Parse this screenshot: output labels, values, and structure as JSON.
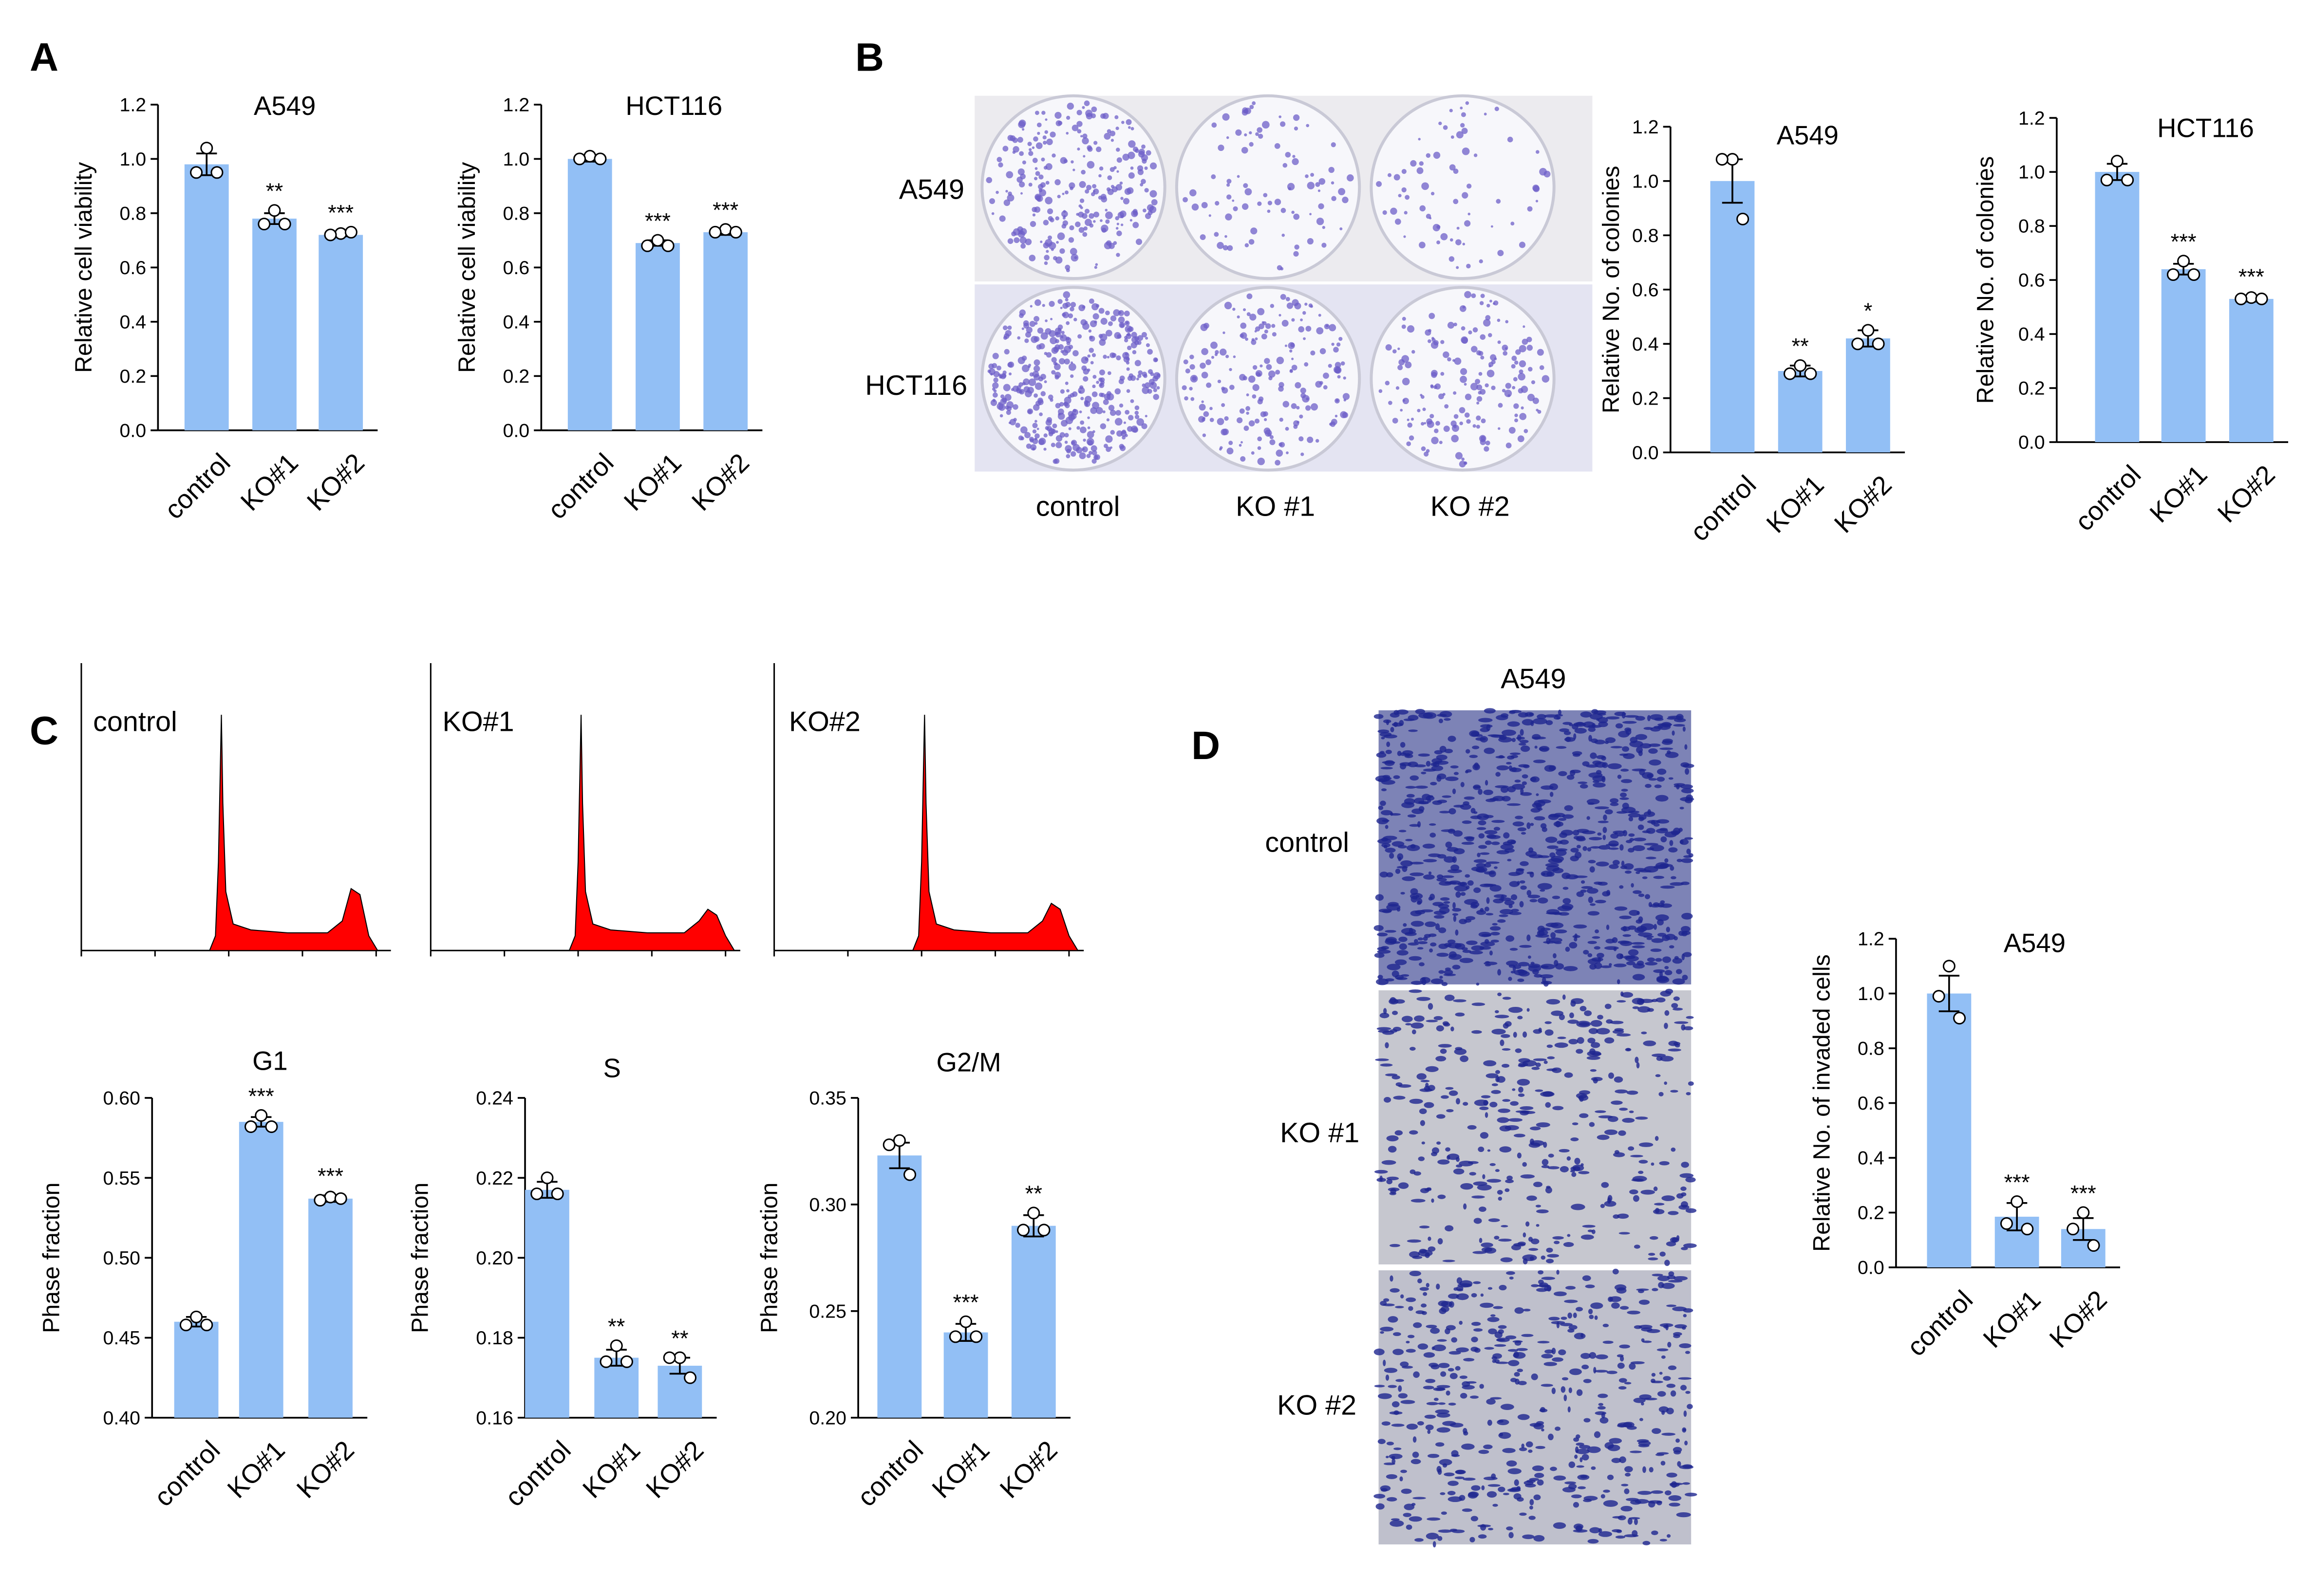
{
  "panel_labels": [
    "A",
    "B",
    "C",
    "D"
  ],
  "colony_images": {
    "rows": [
      "A549",
      "HCT116"
    ],
    "columns": [
      "control",
      "KO #1",
      "KO #2"
    ]
  },
  "cell_cycle_histograms": {
    "labels": [
      "control",
      "KO#1",
      "KO#2"
    ]
  },
  "invasion_images": {
    "title": "A549",
    "rows": [
      "control",
      "KO #1",
      "KO #2"
    ]
  },
  "chart_data": [
    {
      "type": "bar",
      "title": "A549",
      "y_label": "Relative cell viability",
      "categories": [
        "control",
        "KO#1",
        "KO#2"
      ],
      "values": [
        0.98,
        0.78,
        0.72
      ],
      "errors": [
        0.04,
        0.02,
        0.005
      ],
      "points": [
        [
          1.04,
          0.95,
          0.95
        ],
        [
          0.81,
          0.76,
          0.76
        ],
        [
          0.725,
          0.72,
          0.73
        ]
      ],
      "annotations": [
        null,
        "**",
        "***"
      ],
      "color": "#92bff5",
      "ylim": [
        0,
        1.2
      ],
      "yticks": [
        {
          "value": 0,
          "label": "0.0"
        },
        0.2,
        0.4,
        0.6,
        0.8,
        {
          "value": 1,
          "label": "1.0"
        },
        1.2
      ]
    },
    {
      "type": "bar",
      "title": "HCT116",
      "y_label": "Relative cell viability",
      "categories": [
        "control",
        "KO#1",
        "KO#2"
      ],
      "values": [
        1.0,
        0.69,
        0.73
      ],
      "errors": [
        0.01,
        0.01,
        0.01
      ],
      "points": [
        [
          1.01,
          1.0,
          1.0
        ],
        [
          0.7,
          0.68,
          0.68
        ],
        [
          0.74,
          0.73,
          0.73
        ]
      ],
      "annotations": [
        null,
        "***",
        "***"
      ],
      "color": "#92bff5",
      "ylim": [
        0,
        1.2
      ],
      "yticks": [
        {
          "value": 0,
          "label": "0.0"
        },
        0.2,
        0.4,
        0.6,
        0.8,
        {
          "value": 1,
          "label": "1.0"
        },
        1.2
      ]
    },
    {
      "type": "bar",
      "title": "A549",
      "y_label": "Relative No. of colonies",
      "categories": [
        "control",
        "KO#1",
        "KO#2"
      ],
      "values": [
        1.0,
        0.3,
        0.42
      ],
      "errors": [
        0.08,
        0.02,
        0.03
      ],
      "points": [
        [
          1.08,
          1.08,
          0.86
        ],
        [
          0.32,
          0.29,
          0.29
        ],
        [
          0.45,
          0.4,
          0.4
        ]
      ],
      "annotations": [
        null,
        "**",
        "*"
      ],
      "color": "#92bff5",
      "ylim": [
        0,
        1.2
      ],
      "yticks": [
        {
          "value": 0,
          "label": "0.0"
        },
        0.2,
        0.4,
        0.6,
        0.8,
        {
          "value": 1,
          "label": "1.0"
        },
        1.2
      ]
    },
    {
      "type": "bar",
      "title": "HCT116",
      "y_label": "Relative No. of colonies",
      "categories": [
        "control",
        "KO#1",
        "KO#2"
      ],
      "values": [
        1.0,
        0.64,
        0.53
      ],
      "errors": [
        0.03,
        0.02,
        0.01
      ],
      "points": [
        [
          1.04,
          0.97,
          0.97
        ],
        [
          0.67,
          0.62,
          0.62
        ],
        [
          0.535,
          0.53,
          0.53
        ]
      ],
      "annotations": [
        null,
        "***",
        "***"
      ],
      "color": "#92bff5",
      "ylim": [
        0,
        1.2
      ],
      "yticks": [
        {
          "value": 0,
          "label": "0.0"
        },
        0.2,
        0.4,
        0.6,
        0.8,
        {
          "value": 1,
          "label": "1.0"
        },
        1.2
      ]
    },
    {
      "type": "bar",
      "title": "G1",
      "y_label": "Phase fraction",
      "categories": [
        "control",
        "KO#1",
        "KO#2"
      ],
      "values": [
        0.46,
        0.585,
        0.537
      ],
      "errors": [
        0.003,
        0.003,
        0.002
      ],
      "points": [
        [
          0.463,
          0.458,
          0.458
        ],
        [
          0.589,
          0.582,
          0.582
        ],
        [
          0.538,
          0.536,
          0.537
        ]
      ],
      "annotations": [
        null,
        "***",
        "***"
      ],
      "color": "#92bff5",
      "ylim": [
        0.4,
        0.6
      ],
      "yticks": [
        {
          "value": 0.4,
          "label": "0.40"
        },
        0.45,
        {
          "value": 0.5,
          "label": "0.50"
        },
        0.55,
        {
          "value": 0.6,
          "label": "0.60"
        }
      ]
    },
    {
      "type": "bar",
      "title": "S",
      "y_label": "Phase fraction",
      "categories": [
        "control",
        "KO#1",
        "KO#2"
      ],
      "values": [
        0.217,
        0.175,
        0.173
      ],
      "errors": [
        0.002,
        0.002,
        0.002
      ],
      "points": [
        [
          0.22,
          0.216,
          0.216
        ],
        [
          0.178,
          0.174,
          0.174
        ],
        [
          0.175,
          0.175,
          0.17
        ]
      ],
      "annotations": [
        null,
        "**",
        "**"
      ],
      "color": "#92bff5",
      "ylim": [
        0.16,
        0.24
      ],
      "yticks": [
        0.16,
        0.18,
        {
          "value": 0.2,
          "label": "0.20"
        },
        0.22,
        0.24
      ]
    },
    {
      "type": "bar",
      "title": "G2/M",
      "y_label": "Phase fraction",
      "categories": [
        "control",
        "KO#1",
        "KO#2"
      ],
      "values": [
        0.323,
        0.24,
        0.29
      ],
      "errors": [
        0.006,
        0.004,
        0.005
      ],
      "points": [
        [
          0.33,
          0.328,
          0.314
        ],
        [
          0.245,
          0.238,
          0.238
        ],
        [
          0.296,
          0.288,
          0.288
        ]
      ],
      "annotations": [
        null,
        "***",
        "**"
      ],
      "color": "#92bff5",
      "ylim": [
        0.2,
        0.35
      ],
      "yticks": [
        {
          "value": 0.2,
          "label": "0.20"
        },
        0.25,
        {
          "value": 0.3,
          "label": "0.30"
        },
        0.35
      ]
    },
    {
      "type": "bar",
      "title": "A549",
      "y_label": "Relative No. of invaded cells",
      "categories": [
        "control",
        "KO#1",
        "KO#2"
      ],
      "values": [
        1.0,
        0.185,
        0.14
      ],
      "errors": [
        0.065,
        0.05,
        0.04
      ],
      "points": [
        [
          1.1,
          0.99,
          0.91
        ],
        [
          0.24,
          0.16,
          0.14
        ],
        [
          0.2,
          0.14,
          0.08
        ]
      ],
      "annotations": [
        null,
        "***",
        "***"
      ],
      "color": "#92bff5",
      "ylim": [
        0,
        1.2
      ],
      "yticks": [
        {
          "value": 0,
          "label": "0.0"
        },
        0.2,
        0.4,
        0.6,
        0.8,
        {
          "value": 1,
          "label": "1.0"
        },
        1.2
      ]
    }
  ]
}
